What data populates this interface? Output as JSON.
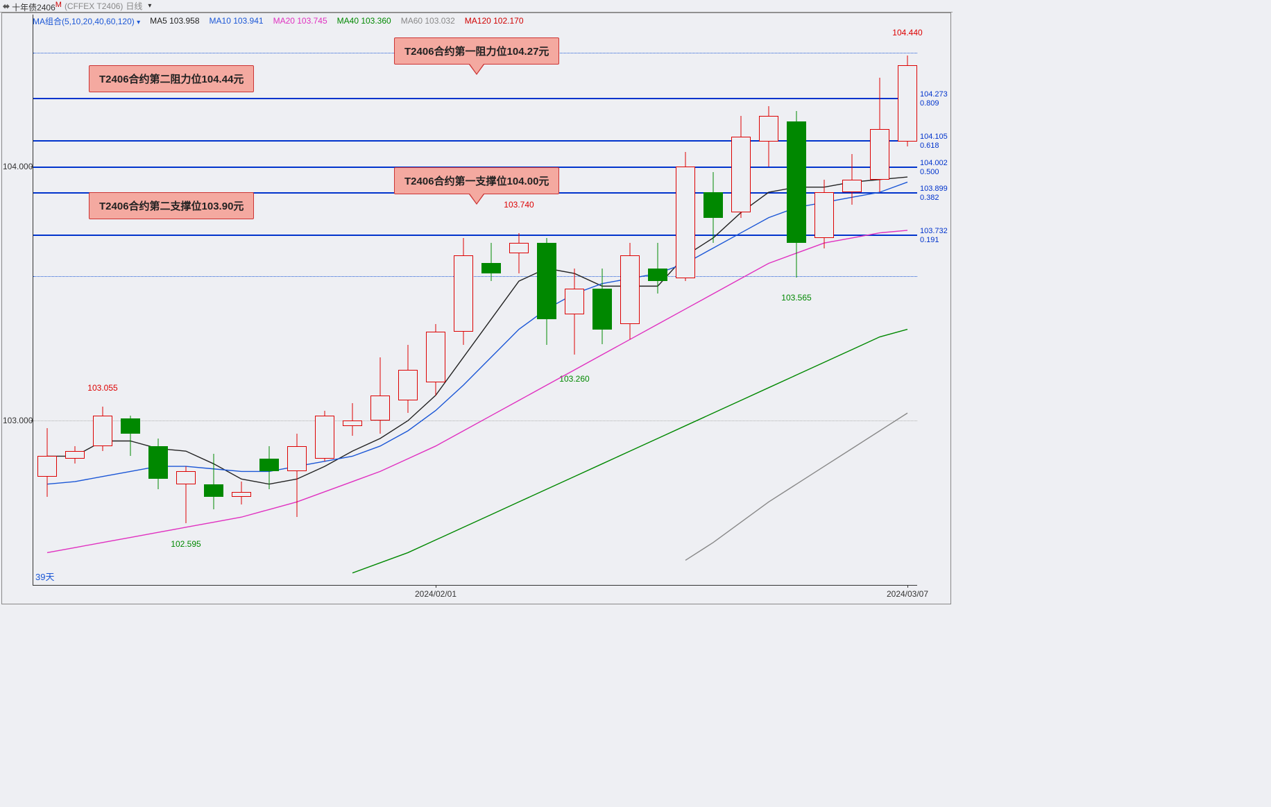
{
  "title": {
    "name": "十年债2406",
    "sup": "M",
    "exchange": "(CFFEX T2406)",
    "interval": "日线"
  },
  "legend": {
    "group_label": "MA组合(5,10,20,40,60,120)",
    "items": [
      {
        "label": "MA5",
        "value": "103.958",
        "color": "#222222"
      },
      {
        "label": "MA10",
        "value": "103.941",
        "color": "#1a56d6"
      },
      {
        "label": "MA20",
        "value": "103.745",
        "color": "#e030c0"
      },
      {
        "label": "MA40",
        "value": "103.360",
        "color": "#008800"
      },
      {
        "label": "MA60",
        "value": "103.032",
        "color": "#888888"
      },
      {
        "label": "MA120",
        "value": "102.170",
        "color": "#d00000"
      }
    ]
  },
  "colors": {
    "background": "#eeeff3",
    "axis": "#333333",
    "grid": "#b0b0b0",
    "up_candle": "#d00000",
    "down_candle": "#008800",
    "hline": "#0033cc",
    "callout_bg": "#f4a9a0",
    "callout_border": "#cc3333"
  },
  "y_axis": {
    "min": 102.35,
    "max": 104.6,
    "labels": [
      103.0,
      104.0
    ]
  },
  "x_axis": {
    "labels": [
      {
        "text": "2024/02/01",
        "idx": 14
      },
      {
        "text": "2024/03/07",
        "idx": 31
      }
    ],
    "count": 32,
    "spacing": 40
  },
  "hlines": [
    {
      "price": 104.273,
      "rlabel": "104.273",
      "rlabel2": "0.809"
    },
    {
      "price": 104.105,
      "rlabel": "104.105",
      "rlabel2": "0.618"
    },
    {
      "price": 104.002,
      "rlabel": "104.002",
      "rlabel2": "0.500"
    },
    {
      "price": 103.899,
      "rlabel": "103.899",
      "rlabel2": "0.382"
    },
    {
      "price": 103.732,
      "rlabel": "103.732",
      "rlabel2": "0.191"
    }
  ],
  "dotted_hlines": [
    104.45,
    103.57
  ],
  "price_labels": [
    {
      "idx": 2,
      "price": 103.1,
      "text": "103.055",
      "cls": "red",
      "above": true
    },
    {
      "idx": 5,
      "price": 102.55,
      "text": "102.595",
      "cls": "green",
      "above": false
    },
    {
      "idx": 17,
      "price": 103.82,
      "text": "103.740",
      "cls": "red",
      "above": true
    },
    {
      "idx": 19,
      "price": 103.2,
      "text": "103.260",
      "cls": "green",
      "above": false
    },
    {
      "idx": 27,
      "price": 103.52,
      "text": "103.565",
      "cls": "green",
      "above": false
    },
    {
      "idx": 31,
      "price": 104.5,
      "text": "104.440",
      "cls": "red",
      "above": true
    }
  ],
  "callouts": [
    {
      "text": "T2406合约第一阻力位104.27元",
      "idx": 16,
      "price": 104.46,
      "pointer": true
    },
    {
      "text": "T2406合约第二阻力位104.44元",
      "idx": 5,
      "price": 104.35,
      "pointer": false
    },
    {
      "text": "T2406合约第一支撑位104.00元",
      "idx": 16,
      "price": 103.95,
      "pointer": true
    },
    {
      "text": "T2406合约第二支撑位103.90元",
      "idx": 5,
      "price": 103.85,
      "pointer": false
    }
  ],
  "corner_label": "39天",
  "candles": [
    {
      "o": 102.78,
      "h": 102.97,
      "l": 102.7,
      "c": 102.86
    },
    {
      "o": 102.85,
      "h": 102.9,
      "l": 102.83,
      "c": 102.88
    },
    {
      "o": 102.9,
      "h": 103.055,
      "l": 102.88,
      "c": 103.02
    },
    {
      "o": 103.01,
      "h": 103.02,
      "l": 102.86,
      "c": 102.95
    },
    {
      "o": 102.9,
      "h": 102.93,
      "l": 102.73,
      "c": 102.77
    },
    {
      "o": 102.75,
      "h": 102.82,
      "l": 102.595,
      "c": 102.8
    },
    {
      "o": 102.75,
      "h": 102.87,
      "l": 102.65,
      "c": 102.7
    },
    {
      "o": 102.7,
      "h": 102.76,
      "l": 102.67,
      "c": 102.72
    },
    {
      "o": 102.85,
      "h": 102.9,
      "l": 102.73,
      "c": 102.8
    },
    {
      "o": 102.8,
      "h": 102.95,
      "l": 102.62,
      "c": 102.9
    },
    {
      "o": 102.85,
      "h": 103.04,
      "l": 102.84,
      "c": 103.02
    },
    {
      "o": 102.98,
      "h": 103.07,
      "l": 102.94,
      "c": 103.0
    },
    {
      "o": 103.0,
      "h": 103.25,
      "l": 102.95,
      "c": 103.1
    },
    {
      "o": 103.08,
      "h": 103.3,
      "l": 103.03,
      "c": 103.2
    },
    {
      "o": 103.15,
      "h": 103.38,
      "l": 103.1,
      "c": 103.35
    },
    {
      "o": 103.35,
      "h": 103.72,
      "l": 103.3,
      "c": 103.65
    },
    {
      "o": 103.62,
      "h": 103.7,
      "l": 103.55,
      "c": 103.58
    },
    {
      "o": 103.66,
      "h": 103.74,
      "l": 103.58,
      "c": 103.7
    },
    {
      "o": 103.7,
      "h": 103.72,
      "l": 103.3,
      "c": 103.4
    },
    {
      "o": 103.42,
      "h": 103.6,
      "l": 103.26,
      "c": 103.52
    },
    {
      "o": 103.52,
      "h": 103.6,
      "l": 103.3,
      "c": 103.36
    },
    {
      "o": 103.38,
      "h": 103.7,
      "l": 103.32,
      "c": 103.65
    },
    {
      "o": 103.6,
      "h": 103.7,
      "l": 103.5,
      "c": 103.55
    },
    {
      "o": 103.56,
      "h": 104.06,
      "l": 103.55,
      "c": 104.0
    },
    {
      "o": 103.9,
      "h": 103.98,
      "l": 103.7,
      "c": 103.8
    },
    {
      "o": 103.82,
      "h": 104.2,
      "l": 103.8,
      "c": 104.12
    },
    {
      "o": 104.1,
      "h": 104.24,
      "l": 104.0,
      "c": 104.2
    },
    {
      "o": 104.18,
      "h": 104.22,
      "l": 103.565,
      "c": 103.7
    },
    {
      "o": 103.72,
      "h": 103.95,
      "l": 103.68,
      "c": 103.9
    },
    {
      "o": 103.9,
      "h": 104.05,
      "l": 103.85,
      "c": 103.95
    },
    {
      "o": 103.95,
      "h": 104.35,
      "l": 103.9,
      "c": 104.15
    },
    {
      "o": 104.1,
      "h": 104.44,
      "l": 104.08,
      "c": 104.4
    }
  ],
  "ma_lines": {
    "ma5": {
      "color": "#222222",
      "vals": [
        102.86,
        102.86,
        102.92,
        102.92,
        102.89,
        102.88,
        102.83,
        102.77,
        102.75,
        102.77,
        102.82,
        102.88,
        102.93,
        103.0,
        103.1,
        103.25,
        103.4,
        103.55,
        103.6,
        103.58,
        103.53,
        103.53,
        103.53,
        103.65,
        103.72,
        103.82,
        103.9,
        103.92,
        103.92,
        103.94,
        103.95,
        103.96
      ]
    },
    "ma10": {
      "color": "#1a56d6",
      "vals": [
        102.75,
        102.76,
        102.78,
        102.8,
        102.82,
        102.82,
        102.81,
        102.8,
        102.8,
        102.82,
        102.84,
        102.86,
        102.9,
        102.96,
        103.04,
        103.14,
        103.25,
        103.36,
        103.44,
        103.5,
        103.54,
        103.56,
        103.58,
        103.62,
        103.68,
        103.74,
        103.8,
        103.84,
        103.86,
        103.88,
        103.9,
        103.94
      ]
    },
    "ma20": {
      "color": "#e030c0",
      "vals": [
        102.48,
        102.5,
        102.52,
        102.54,
        102.56,
        102.58,
        102.6,
        102.62,
        102.65,
        102.68,
        102.72,
        102.76,
        102.8,
        102.85,
        102.9,
        102.96,
        103.02,
        103.08,
        103.14,
        103.2,
        103.26,
        103.32,
        103.38,
        103.44,
        103.5,
        103.56,
        103.62,
        103.66,
        103.7,
        103.72,
        103.74,
        103.75
      ]
    },
    "ma40": {
      "color": "#008800",
      "vals": [
        null,
        null,
        null,
        null,
        null,
        null,
        null,
        null,
        null,
        null,
        null,
        102.4,
        102.44,
        102.48,
        102.53,
        102.58,
        102.63,
        102.68,
        102.73,
        102.78,
        102.83,
        102.88,
        102.93,
        102.98,
        103.03,
        103.08,
        103.13,
        103.18,
        103.23,
        103.28,
        103.33,
        103.36
      ]
    },
    "ma60": {
      "color": "#888888",
      "vals": [
        null,
        null,
        null,
        null,
        null,
        null,
        null,
        null,
        null,
        null,
        null,
        null,
        null,
        null,
        null,
        null,
        null,
        null,
        null,
        null,
        null,
        null,
        null,
        102.45,
        102.52,
        102.6,
        102.68,
        102.75,
        102.82,
        102.89,
        102.96,
        103.03
      ]
    }
  }
}
